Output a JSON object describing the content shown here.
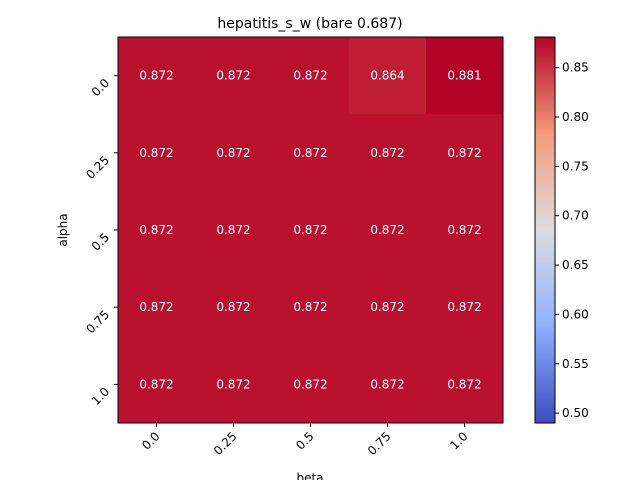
{
  "chart_data": {
    "type": "heatmap",
    "title": "hepatitis_s_w (bare 0.687)",
    "xlabel": "beta",
    "ylabel": "alpha",
    "x_categories": [
      "0.0",
      "0.25",
      "0.5",
      "0.75",
      "1.0"
    ],
    "y_categories": [
      "0.0",
      "0.25",
      "0.5",
      "0.75",
      "1.0"
    ],
    "values": [
      [
        0.872,
        0.872,
        0.872,
        0.864,
        0.881
      ],
      [
        0.872,
        0.872,
        0.872,
        0.872,
        0.872
      ],
      [
        0.872,
        0.872,
        0.872,
        0.872,
        0.872
      ],
      [
        0.872,
        0.872,
        0.872,
        0.872,
        0.872
      ],
      [
        0.872,
        0.872,
        0.872,
        0.872,
        0.872
      ]
    ],
    "value_labels": [
      [
        "0.872",
        "0.872",
        "0.872",
        "0.864",
        "0.881"
      ],
      [
        "0.872",
        "0.872",
        "0.872",
        "0.872",
        "0.872"
      ],
      [
        "0.872",
        "0.872",
        "0.872",
        "0.872",
        "0.872"
      ],
      [
        "0.872",
        "0.872",
        "0.872",
        "0.872",
        "0.872"
      ],
      [
        "0.872",
        "0.872",
        "0.872",
        "0.872",
        "0.872"
      ]
    ],
    "colormap": "coolwarm",
    "vmin": 0.49,
    "vmax": 0.881,
    "colorbar_ticks": [
      "0.50",
      "0.55",
      "0.60",
      "0.65",
      "0.70",
      "0.75",
      "0.80",
      "0.85"
    ],
    "colorbar_tick_values": [
      0.5,
      0.55,
      0.6,
      0.65,
      0.7,
      0.75,
      0.8,
      0.85
    ],
    "grid": false
  }
}
